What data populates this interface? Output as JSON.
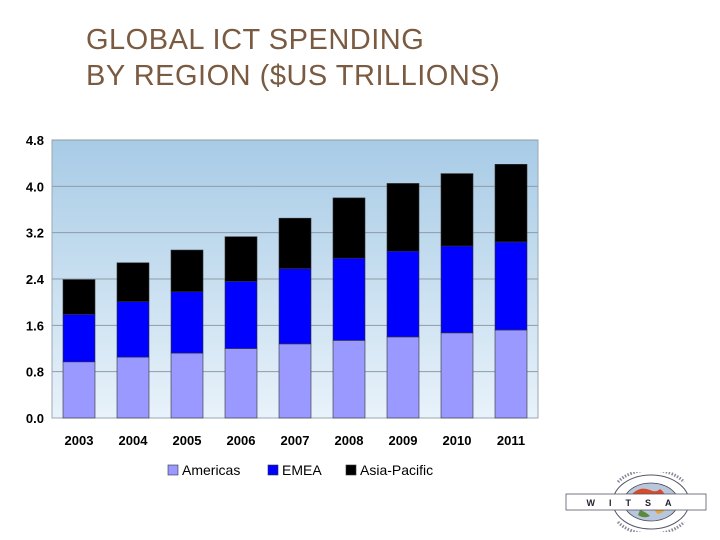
{
  "title": {
    "line1": "GLOBAL ICT SPENDING",
    "line2": "BY REGION ($US TRILLIONS)"
  },
  "colors": {
    "plot_bg_top": "#a8cbe6",
    "plot_bg_bottom": "#e8f2fa",
    "americas": "#9999ff",
    "emea": "#0000ff",
    "asia_pacific": "#000000",
    "title": "#7a5a40"
  },
  "chart_data": {
    "type": "bar",
    "stacked": true,
    "title": "",
    "xlabel": "",
    "ylabel": "",
    "categories": [
      "2003",
      "2004",
      "2005",
      "2006",
      "2007",
      "2008",
      "2009",
      "2010",
      "2011"
    ],
    "series": [
      {
        "name": "Americas",
        "values": [
          0.97,
          1.05,
          1.12,
          1.2,
          1.28,
          1.34,
          1.4,
          1.47,
          1.52
        ]
      },
      {
        "name": "EMEA",
        "values": [
          0.82,
          0.96,
          1.06,
          1.16,
          1.3,
          1.42,
          1.48,
          1.5,
          1.52
        ]
      },
      {
        "name": "Asia-Pacific",
        "values": [
          0.6,
          0.67,
          0.72,
          0.77,
          0.87,
          1.04,
          1.17,
          1.25,
          1.34
        ]
      }
    ],
    "ylim": [
      0,
      4.8
    ],
    "yticks": [
      "0.0",
      "0.8",
      "1.6",
      "2.4",
      "3.2",
      "4.0",
      "4.8"
    ],
    "grid": true,
    "legend": "bottom"
  },
  "logo": {
    "name": "world-information-technology-and-services-alliance-logo",
    "letters": "W I T S A"
  }
}
